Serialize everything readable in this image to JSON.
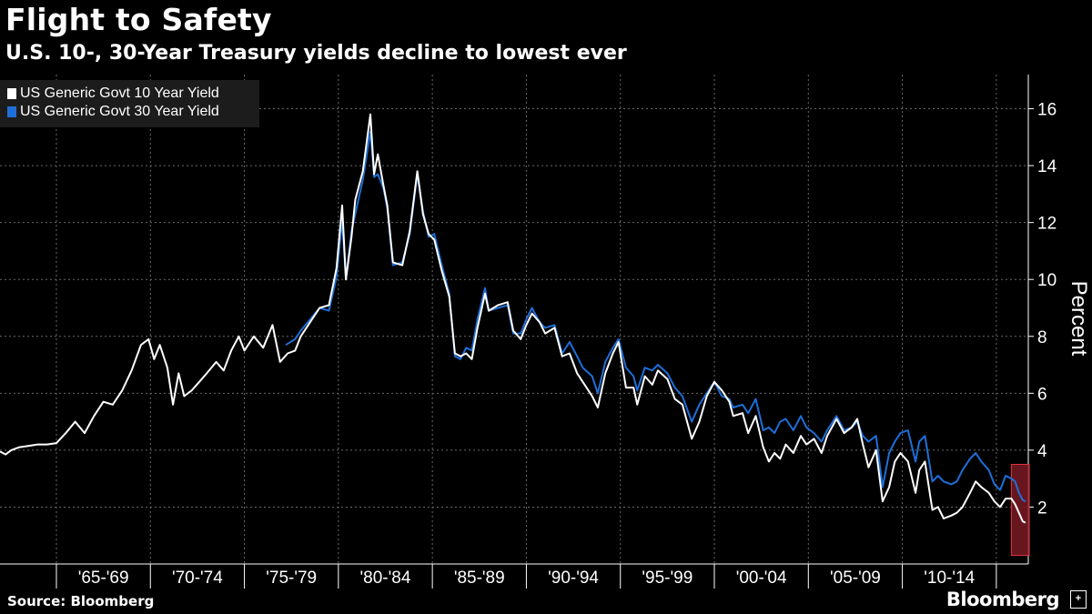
{
  "header": {
    "title": "Flight to Safety",
    "subtitle": "U.S. 10-, 30-Year Treasury yields decline to lowest ever"
  },
  "footer": {
    "source": "Source: Bloomberg",
    "brand": "Bloomberg",
    "brand_icon": "bloomberg-terminal-icon"
  },
  "colors": {
    "background": "#000000",
    "ten_year": "#ffffff",
    "thirty_year": "#1e6fd9",
    "highlight_fill": "#7a1a22",
    "highlight_stroke": "#e0333f"
  },
  "chart_data": {
    "type": "line",
    "title": "Flight to Safety",
    "subtitle": "U.S. 10-, 30-Year Treasury yields decline to lowest ever",
    "ylabel": "Percent",
    "xlabel": "",
    "ylim": [
      0,
      17.2
    ],
    "xlim": [
      1962.0,
      2016.7
    ],
    "yticks": [
      2,
      4,
      6,
      8,
      10,
      12,
      14,
      16
    ],
    "xtick_labels": [
      "'65-'69",
      "'70-'74",
      "'75-'79",
      "'80-'84",
      "'85-'89",
      "'90-'94",
      "'95-'99",
      "'00-'04",
      "'05-'09",
      "'10-'14"
    ],
    "grid": true,
    "legend_position": "top-left",
    "highlight": {
      "x": [
        2015.8,
        2016.75
      ],
      "y": [
        0.3,
        3.5
      ]
    },
    "series": [
      {
        "name": "US Generic Govt 10 Year Yield",
        "color": "#ffffff",
        "x": [
          1962.0,
          1962.3,
          1962.6,
          1963.0,
          1963.5,
          1964.0,
          1964.5,
          1965.0,
          1965.5,
          1966.0,
          1966.5,
          1967.0,
          1967.5,
          1968.0,
          1968.5,
          1969.0,
          1969.5,
          1969.9,
          1970.2,
          1970.5,
          1970.9,
          1971.2,
          1971.5,
          1971.8,
          1972.2,
          1972.6,
          1973.0,
          1973.5,
          1973.9,
          1974.3,
          1974.7,
          1975.0,
          1975.5,
          1976.0,
          1976.5,
          1976.9,
          1977.3,
          1977.7,
          1978.0,
          1978.5,
          1979.0,
          1979.5,
          1979.9,
          1980.2,
          1980.4,
          1980.7,
          1980.9,
          1981.3,
          1981.7,
          1981.9,
          1982.1,
          1982.4,
          1982.6,
          1982.9,
          1983.4,
          1983.8,
          1984.2,
          1984.5,
          1984.8,
          1985.1,
          1985.5,
          1985.9,
          1986.2,
          1986.5,
          1986.8,
          1987.1,
          1987.4,
          1987.8,
          1988.0,
          1988.5,
          1989.0,
          1989.3,
          1989.7,
          1990.0,
          1990.3,
          1990.7,
          1991.0,
          1991.5,
          1991.9,
          1992.3,
          1992.7,
          1993.0,
          1993.5,
          1993.8,
          1994.2,
          1994.6,
          1994.9,
          1995.3,
          1995.7,
          1995.9,
          1996.3,
          1996.7,
          1997.0,
          1997.5,
          1997.9,
          1998.3,
          1998.8,
          1999.2,
          1999.6,
          2000.0,
          2000.4,
          2000.8,
          2001.0,
          2001.5,
          2001.8,
          2002.2,
          2002.6,
          2002.9,
          2003.2,
          2003.5,
          2003.8,
          2004.2,
          2004.6,
          2004.9,
          2005.3,
          2005.7,
          2006.0,
          2006.5,
          2006.9,
          2007.3,
          2007.6,
          2007.9,
          2008.2,
          2008.6,
          2008.95,
          2009.3,
          2009.6,
          2009.9,
          2010.3,
          2010.7,
          2010.9,
          2011.2,
          2011.6,
          2011.9,
          2012.2,
          2012.6,
          2012.9,
          2013.2,
          2013.6,
          2013.9,
          2014.2,
          2014.6,
          2014.9,
          2015.2,
          2015.5,
          2015.8,
          2016.0,
          2016.2,
          2016.4,
          2016.55
        ],
        "y": [
          3.95,
          3.85,
          4.0,
          4.1,
          4.15,
          4.2,
          4.2,
          4.25,
          4.6,
          5.0,
          4.6,
          5.2,
          5.7,
          5.6,
          6.1,
          6.8,
          7.7,
          7.9,
          7.2,
          7.7,
          6.9,
          5.6,
          6.7,
          5.9,
          6.1,
          6.4,
          6.7,
          7.1,
          6.8,
          7.5,
          8.0,
          7.5,
          8.0,
          7.6,
          8.4,
          7.1,
          7.4,
          7.5,
          8.0,
          8.5,
          9.0,
          9.1,
          10.4,
          12.6,
          10.0,
          11.5,
          12.8,
          13.8,
          15.8,
          13.7,
          14.4,
          13.3,
          12.6,
          10.6,
          10.5,
          11.7,
          13.8,
          12.3,
          11.6,
          11.4,
          10.3,
          9.4,
          7.4,
          7.3,
          7.4,
          7.2,
          8.3,
          9.5,
          8.9,
          9.1,
          9.2,
          8.2,
          7.9,
          8.4,
          8.8,
          8.5,
          8.1,
          8.3,
          7.3,
          7.4,
          6.7,
          6.4,
          5.9,
          5.5,
          6.7,
          7.4,
          7.8,
          6.2,
          6.2,
          5.6,
          6.6,
          6.3,
          6.8,
          6.5,
          5.8,
          5.6,
          4.4,
          5.0,
          5.9,
          6.4,
          6.1,
          5.7,
          5.2,
          5.3,
          4.6,
          5.2,
          4.1,
          3.6,
          3.9,
          3.7,
          4.2,
          3.9,
          4.5,
          4.2,
          4.4,
          3.9,
          4.5,
          5.1,
          4.6,
          4.8,
          5.1,
          4.2,
          3.4,
          4.0,
          2.2,
          2.7,
          3.6,
          3.9,
          3.6,
          2.5,
          3.3,
          3.6,
          1.9,
          2.0,
          1.6,
          1.7,
          1.8,
          2.0,
          2.5,
          2.9,
          2.7,
          2.5,
          2.2,
          2.0,
          2.3,
          2.3,
          2.1,
          1.8,
          1.5,
          1.45
        ]
      },
      {
        "name": "US Generic Govt 30 Year Yield",
        "color": "#1e6fd9",
        "x": [
          1977.2,
          1977.7,
          1978.0,
          1978.5,
          1979.0,
          1979.5,
          1979.9,
          1980.2,
          1980.4,
          1980.7,
          1980.9,
          1981.3,
          1981.7,
          1981.9,
          1982.1,
          1982.4,
          1982.6,
          1982.9,
          1983.4,
          1983.8,
          1984.2,
          1984.5,
          1984.8,
          1985.1,
          1985.5,
          1985.9,
          1986.2,
          1986.5,
          1986.8,
          1987.1,
          1987.4,
          1987.8,
          1988.0,
          1988.5,
          1989.0,
          1989.3,
          1989.7,
          1990.0,
          1990.3,
          1990.7,
          1991.0,
          1991.5,
          1991.9,
          1992.3,
          1992.7,
          1993.0,
          1993.5,
          1993.8,
          1994.2,
          1994.6,
          1994.9,
          1995.3,
          1995.7,
          1995.9,
          1996.3,
          1996.7,
          1997.0,
          1997.5,
          1997.9,
          1998.3,
          1998.8,
          1999.2,
          1999.6,
          2000.0,
          2000.4,
          2000.8,
          2001.0,
          2001.5,
          2001.8,
          2002.2,
          2002.6,
          2002.9,
          2003.2,
          2003.5,
          2003.8,
          2004.2,
          2004.6,
          2004.9,
          2005.3,
          2005.7,
          2006.0,
          2006.5,
          2006.9,
          2007.3,
          2007.6,
          2007.9,
          2008.2,
          2008.6,
          2008.95,
          2009.3,
          2009.6,
          2009.9,
          2010.3,
          2010.7,
          2010.9,
          2011.2,
          2011.6,
          2011.9,
          2012.2,
          2012.6,
          2012.9,
          2013.2,
          2013.6,
          2013.9,
          2014.2,
          2014.6,
          2014.9,
          2015.2,
          2015.5,
          2015.8,
          2016.0,
          2016.2,
          2016.4,
          2016.55
        ],
        "y": [
          7.7,
          7.9,
          8.2,
          8.6,
          9.0,
          8.9,
          10.1,
          12.1,
          10.0,
          11.7,
          12.3,
          13.5,
          15.2,
          13.6,
          13.7,
          13.2,
          12.5,
          10.5,
          10.6,
          11.6,
          13.7,
          12.4,
          11.5,
          11.6,
          10.5,
          9.5,
          7.3,
          7.2,
          7.6,
          7.5,
          8.6,
          9.7,
          8.9,
          9.0,
          9.1,
          8.1,
          8.1,
          8.6,
          9.0,
          8.5,
          8.3,
          8.4,
          7.4,
          7.8,
          7.3,
          6.9,
          6.6,
          6.0,
          7.1,
          7.6,
          7.9,
          6.9,
          6.6,
          6.1,
          6.9,
          6.8,
          7.0,
          6.7,
          6.2,
          5.9,
          5.0,
          5.6,
          6.0,
          6.4,
          5.9,
          5.8,
          5.5,
          5.6,
          5.3,
          5.8,
          4.7,
          4.8,
          4.6,
          5.0,
          5.1,
          4.7,
          5.2,
          4.8,
          4.6,
          4.3,
          4.7,
          5.2,
          4.7,
          4.8,
          5.0,
          4.5,
          4.3,
          4.5,
          2.7,
          3.9,
          4.3,
          4.6,
          4.7,
          3.6,
          4.3,
          4.5,
          2.9,
          3.1,
          2.9,
          2.8,
          2.9,
          3.3,
          3.7,
          3.9,
          3.6,
          3.3,
          2.8,
          2.6,
          3.1,
          3.0,
          2.9,
          2.5,
          2.25,
          2.2
        ]
      }
    ]
  }
}
